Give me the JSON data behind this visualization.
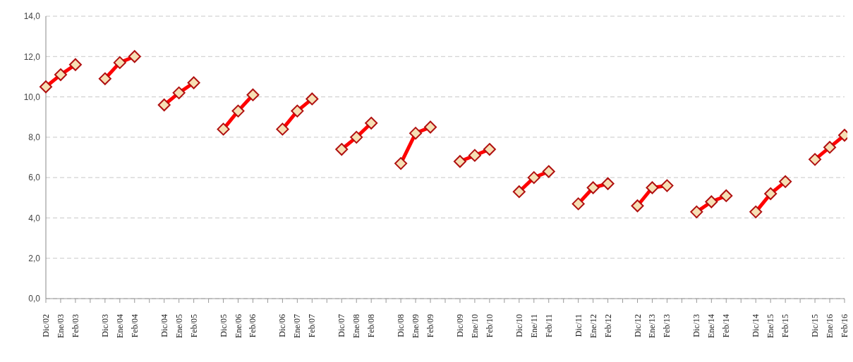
{
  "chart_data": {
    "type": "line",
    "categories": [
      "Dic/02",
      "Ene/03",
      "Feb/03",
      null,
      "Dic/03",
      "Ene/04",
      "Feb/04",
      null,
      "Dic/04",
      "Ene/05",
      "Feb/05",
      null,
      "Dic/05",
      "Ene/06",
      "Feb/06",
      null,
      "Dic/06",
      "Ene/07",
      "Feb/07",
      null,
      "Dic/07",
      "Ene/08",
      "Feb/08",
      null,
      "Dic/08",
      "Ene/09",
      "Feb/09",
      null,
      "Dic/09",
      "Ene/10",
      "Feb/10",
      null,
      "Dic/10",
      "Ene/11",
      "Feb/11",
      null,
      "Dic/11",
      "Ene/12",
      "Feb/12",
      null,
      "Dic/12",
      "Ene/13",
      "Feb/13",
      null,
      "Dic/13",
      "Ene/14",
      "Feb/14",
      null,
      "Dic/14",
      "Ene/15",
      "Feb/15",
      null,
      "Dic/15",
      "Ene/16",
      "Feb/16"
    ],
    "series": [
      {
        "color": "#ff0000",
        "values": [
          10.5,
          11.1,
          11.6,
          null,
          10.9,
          11.7,
          12.0,
          null,
          9.6,
          10.2,
          10.7,
          null,
          8.4,
          9.3,
          10.1,
          null,
          8.4,
          9.3,
          9.9,
          null,
          7.4,
          8.0,
          8.7,
          null,
          6.7,
          8.2,
          8.5,
          null,
          6.8,
          7.1,
          7.4,
          null,
          5.3,
          6.0,
          6.3,
          null,
          4.7,
          5.5,
          5.7,
          null,
          4.6,
          5.5,
          5.6,
          null,
          4.3,
          4.8,
          5.1,
          null,
          4.3,
          5.2,
          5.8,
          null,
          6.9,
          7.5,
          8.1
        ]
      }
    ],
    "ylim": [
      0,
      14
    ],
    "yticks": [
      {
        "value": 0,
        "label": "0,0"
      },
      {
        "value": 2,
        "label": "2,0"
      },
      {
        "value": 4,
        "label": "4,0"
      },
      {
        "value": 6,
        "label": "6,0"
      },
      {
        "value": 8,
        "label": "8,0"
      },
      {
        "value": 10,
        "label": "10,0"
      },
      {
        "value": 12,
        "label": "12,0"
      },
      {
        "value": 14,
        "label": "14,0"
      }
    ],
    "grid": "y",
    "marker": "diamond",
    "line_style": "solid"
  }
}
